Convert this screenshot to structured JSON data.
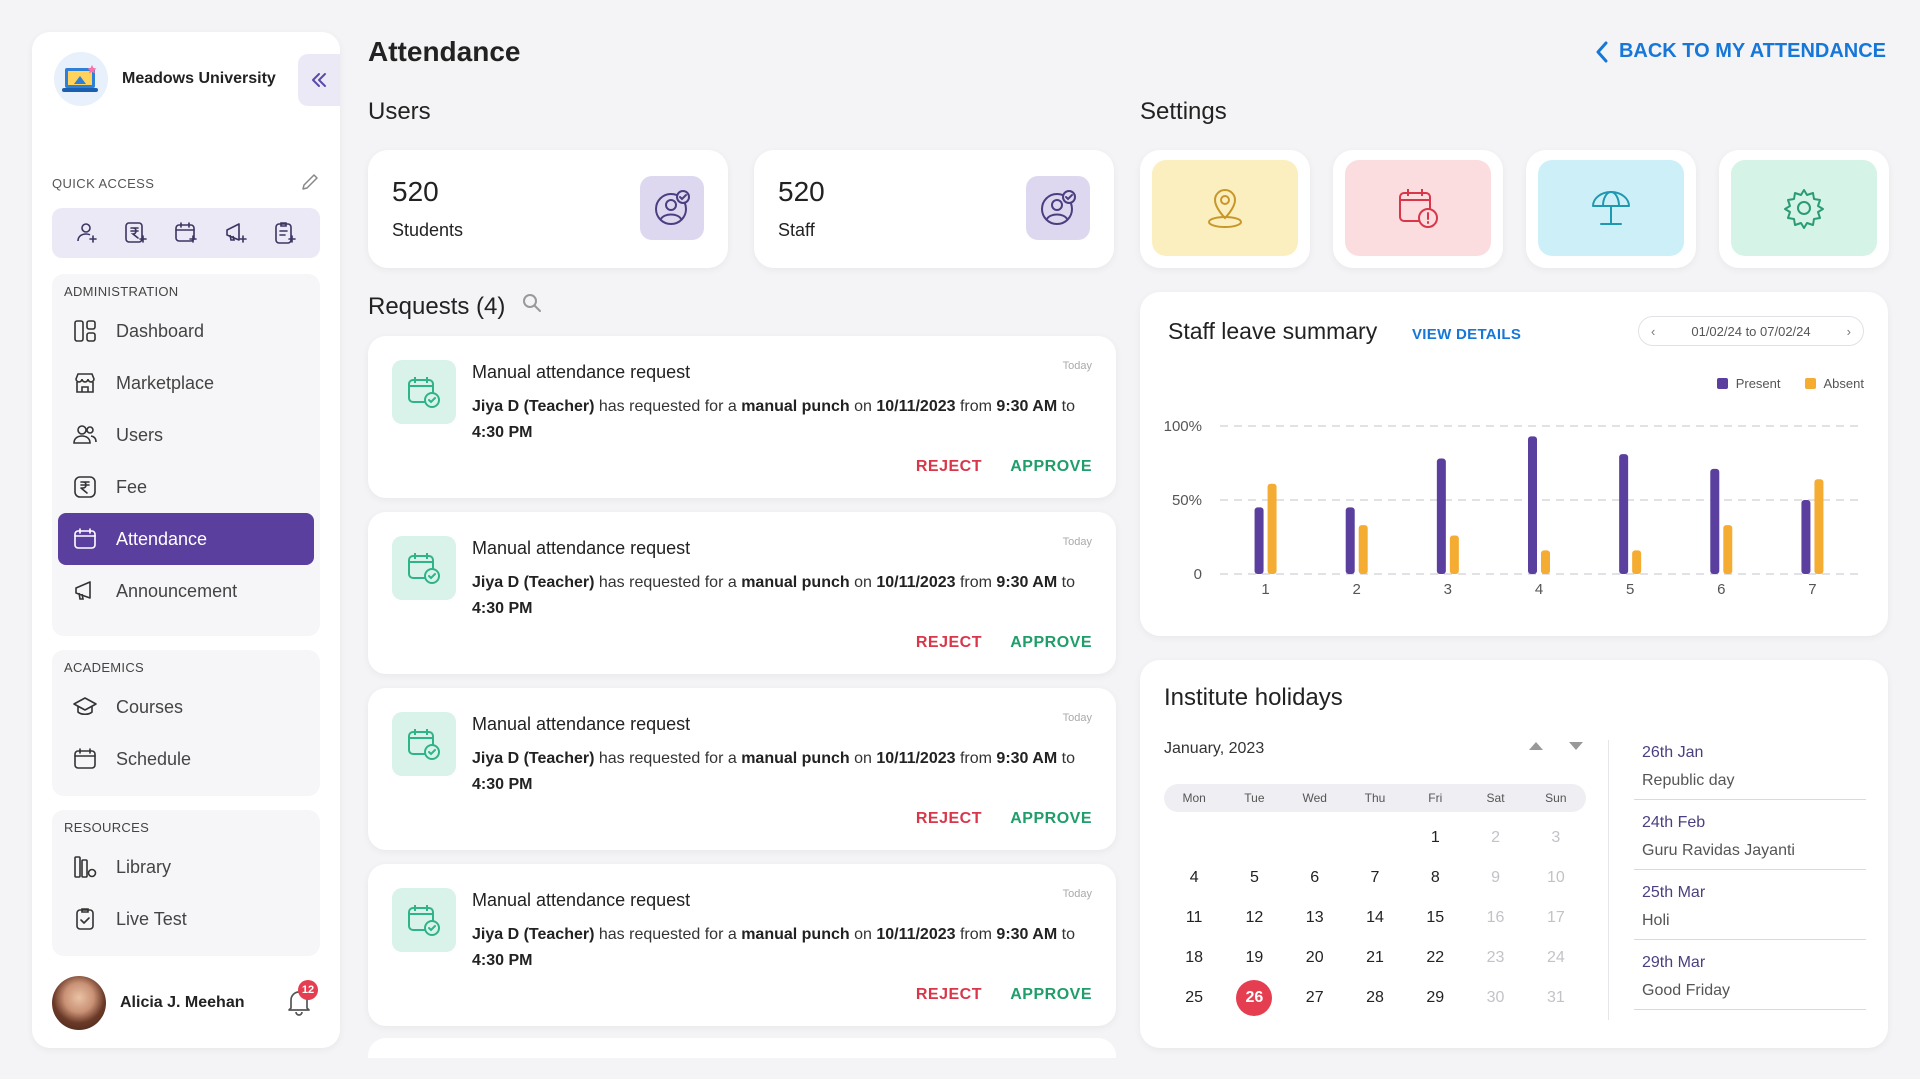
{
  "app": {
    "name": "Meadows University",
    "collapse_icon": "double-chevron-left-icon"
  },
  "quick_access": {
    "label": "QUICK ACCESS",
    "edit_icon": "pencil-icon",
    "icons": [
      "add-user-icon",
      "add-fee-icon",
      "add-calendar-icon",
      "add-announcement-icon",
      "add-test-icon"
    ]
  },
  "sidebar": {
    "administration": {
      "title": "ADMINISTRATION",
      "items": [
        {
          "label": "Dashboard",
          "icon": "dashboard-icon"
        },
        {
          "label": "Marketplace",
          "icon": "store-icon"
        },
        {
          "label": "Users",
          "icon": "users-icon"
        },
        {
          "label": "Fee",
          "icon": "rupee-icon"
        },
        {
          "label": "Attendance",
          "icon": "calendar-icon",
          "active": true
        },
        {
          "label": "Announcement",
          "icon": "megaphone-icon"
        }
      ]
    },
    "academics": {
      "title": "ACADEMICS",
      "items": [
        {
          "label": "Courses",
          "icon": "graduation-cap-icon"
        },
        {
          "label": "Schedule",
          "icon": "schedule-icon"
        }
      ]
    },
    "resources": {
      "title": "RESOURCES",
      "items": [
        {
          "label": "Library",
          "icon": "library-icon"
        },
        {
          "label": "Live Test",
          "icon": "clipboard-check-icon"
        }
      ]
    }
  },
  "user": {
    "name": "Alicia J. Meehan",
    "notifications": "12"
  },
  "page": {
    "title": "Attendance",
    "back_link": "BACK TO MY ATTENDANCE"
  },
  "users_section": {
    "title": "Users",
    "cards": [
      {
        "value": "520",
        "label": "Students"
      },
      {
        "value": "520",
        "label": "Staff"
      }
    ]
  },
  "settings_section": {
    "title": "Settings",
    "cards": [
      {
        "icon": "location-pin-icon",
        "color": "#fbefbf"
      },
      {
        "icon": "calendar-alert-icon",
        "color": "#fbdde0"
      },
      {
        "icon": "beach-umbrella-icon",
        "color": "#cdf0f8"
      },
      {
        "icon": "gear-icon",
        "color": "#d5f3e7"
      }
    ]
  },
  "requests": {
    "title": "Requests (4)",
    "items": [
      {
        "title": "Manual attendance request",
        "time": "Today",
        "name": "Jiya D (Teacher)",
        "t1": " has requested for a ",
        "type": "manual punch",
        "t2": " on ",
        "date": "10/11/2023",
        "t3": " from ",
        "from": "9:30 AM",
        "t4": " to ",
        "to": "4:30 PM",
        "reject": "REJECT",
        "approve": "APPROVE"
      },
      {
        "title": "Manual attendance request",
        "time": "Today",
        "name": "Jiya D (Teacher)",
        "t1": " has requested for a ",
        "type": "manual punch",
        "t2": " on ",
        "date": "10/11/2023",
        "t3": " from ",
        "from": "9:30 AM",
        "t4": " to ",
        "to": "4:30 PM",
        "reject": "REJECT",
        "approve": "APPROVE"
      },
      {
        "title": "Manual attendance request",
        "time": "Today",
        "name": "Jiya D (Teacher)",
        "t1": " has requested for a ",
        "type": "manual punch",
        "t2": " on ",
        "date": "10/11/2023",
        "t3": " from ",
        "from": "9:30 AM",
        "t4": " to ",
        "to": "4:30 PM",
        "reject": "REJECT",
        "approve": "APPROVE"
      },
      {
        "title": "Manual attendance request",
        "time": "Today",
        "name": "Jiya D (Teacher)",
        "t1": " has requested for a ",
        "type": "manual punch",
        "t2": " on ",
        "date": "10/11/2023",
        "t3": " from ",
        "from": "9:30 AM",
        "t4": " to ",
        "to": "4:30 PM",
        "reject": "REJECT",
        "approve": "APPROVE"
      }
    ]
  },
  "leave_summary": {
    "title": "Staff leave summary",
    "link": "VIEW DETAILS",
    "date_range": "01/02/24 to 07/02/24",
    "colors": {
      "present": "#5a3f9e",
      "absent": "#f5ac32"
    }
  },
  "chart_data": {
    "type": "bar",
    "categories": [
      "1",
      "2",
      "3",
      "4",
      "5",
      "6",
      "7"
    ],
    "series": [
      {
        "name": "Present",
        "values": [
          45,
          45,
          78,
          93,
          81,
          71,
          50
        ]
      },
      {
        "name": "Absent",
        "values": [
          61,
          33,
          26,
          16,
          16,
          33,
          64
        ]
      }
    ],
    "yticks": [
      "0",
      "50%",
      "100%"
    ],
    "ylim": [
      0,
      100
    ],
    "legend": "top-right",
    "grid": true
  },
  "holidays": {
    "title": "Institute holidays",
    "month": "January, 2023",
    "weekdays": [
      "Mon",
      "Tue",
      "Wed",
      "Thu",
      "Fri",
      "Sat",
      "Sun"
    ],
    "days": [
      {
        "d": "",
        "dim": false
      },
      {
        "d": "",
        "dim": false
      },
      {
        "d": "",
        "dim": false
      },
      {
        "d": "",
        "dim": false
      },
      {
        "d": "1",
        "dim": false
      },
      {
        "d": "2",
        "dim": true
      },
      {
        "d": "3",
        "dim": true
      },
      {
        "d": "4",
        "dim": false
      },
      {
        "d": "5",
        "dim": false
      },
      {
        "d": "6",
        "dim": false
      },
      {
        "d": "7",
        "dim": false
      },
      {
        "d": "8",
        "dim": false
      },
      {
        "d": "9",
        "dim": true
      },
      {
        "d": "10",
        "dim": true
      },
      {
        "d": "11",
        "dim": false
      },
      {
        "d": "12",
        "dim": false
      },
      {
        "d": "13",
        "dim": false
      },
      {
        "d": "14",
        "dim": false
      },
      {
        "d": "15",
        "dim": false
      },
      {
        "d": "16",
        "dim": true
      },
      {
        "d": "17",
        "dim": true
      },
      {
        "d": "18",
        "dim": false
      },
      {
        "d": "19",
        "dim": false
      },
      {
        "d": "20",
        "dim": false
      },
      {
        "d": "21",
        "dim": false
      },
      {
        "d": "22",
        "dim": false
      },
      {
        "d": "23",
        "dim": true
      },
      {
        "d": "24",
        "dim": true
      },
      {
        "d": "25",
        "dim": false
      },
      {
        "d": "26",
        "dim": false,
        "today": true
      },
      {
        "d": "27",
        "dim": false
      },
      {
        "d": "28",
        "dim": false
      },
      {
        "d": "29",
        "dim": false
      },
      {
        "d": "30",
        "dim": true
      },
      {
        "d": "31",
        "dim": true
      }
    ],
    "list": [
      {
        "date": "26th Jan",
        "name": "Republic day"
      },
      {
        "date": "24th Feb",
        "name": "Guru Ravidas Jayanti"
      },
      {
        "date": "25th Mar",
        "name": "Holi"
      },
      {
        "date": "29th Mar",
        "name": "Good Friday"
      }
    ]
  }
}
